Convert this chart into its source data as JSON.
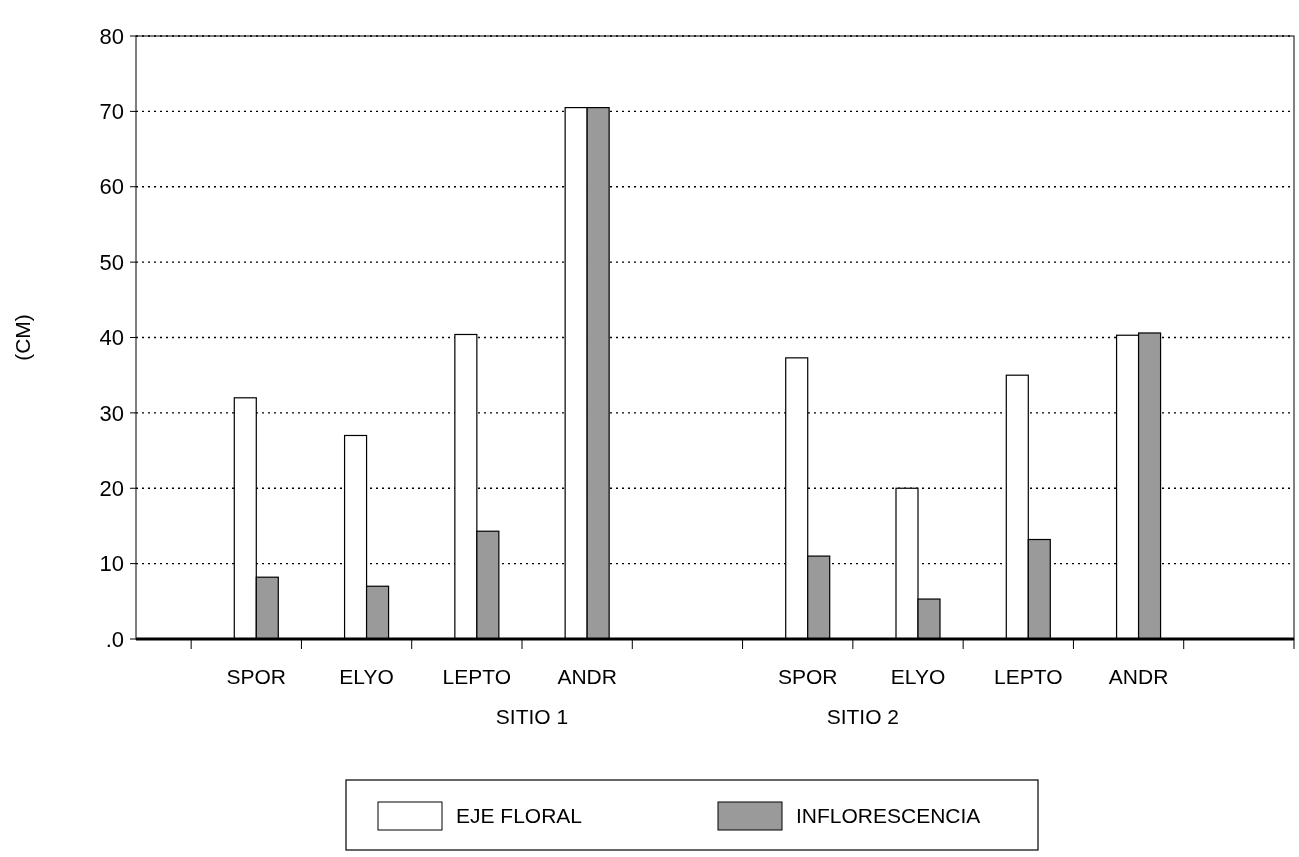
{
  "chart_data": {
    "type": "bar",
    "ylabel": "(CM)",
    "categories": [
      "SPOR",
      "ELYO",
      "LEPTO",
      "ANDR",
      "SPOR",
      "ELYO",
      "LEPTO",
      "ANDR"
    ],
    "series": [
      {
        "name": "EJE FLORAL",
        "color": "#ffffff",
        "values": [
          32,
          27,
          40.4,
          70.5,
          37.3,
          20,
          35,
          40.3
        ]
      },
      {
        "name": "INFLORESCENCIA",
        "color": "#9a9a9a",
        "values": [
          8.2,
          7,
          14.3,
          70.5,
          11,
          5.3,
          13.2,
          40.6
        ]
      }
    ],
    "ylim": [
      0,
      80
    ],
    "yticks": [
      {
        "value": 0,
        "label": ".0"
      },
      10,
      20,
      30,
      40,
      50,
      60,
      70,
      80
    ],
    "grid": "y",
    "legend": "bottom",
    "annotations": [
      "SITIO 1",
      "SITIO 2"
    ]
  }
}
